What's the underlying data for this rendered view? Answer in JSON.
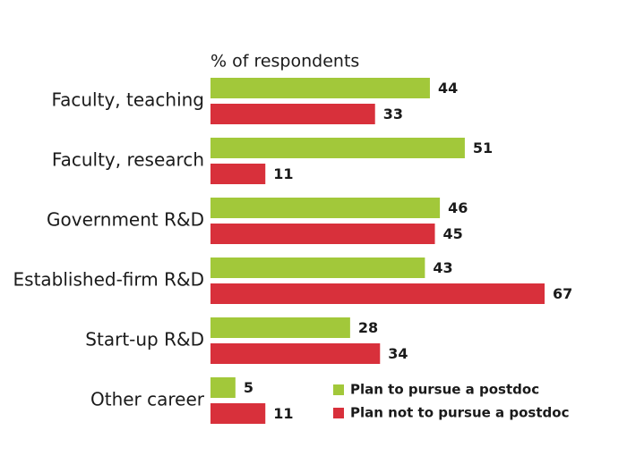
{
  "chart_data": {
    "type": "hbar",
    "subtitle": "% of respondents",
    "categories": [
      "Faculty, teaching",
      "Faculty, research",
      "Government R&D",
      "Established-firm R&D",
      "Start-up R&D",
      "Other career"
    ],
    "series": [
      {
        "name": "Plan to pursue a postdoc",
        "color": "#a2c83a",
        "values": [
          44,
          51,
          46,
          43,
          28,
          5
        ]
      },
      {
        "name": "Plan not to pursue a postdoc",
        "color": "#d8303b",
        "values": [
          33,
          11,
          45,
          67,
          34,
          11
        ]
      }
    ],
    "legend": "bottom-right"
  }
}
